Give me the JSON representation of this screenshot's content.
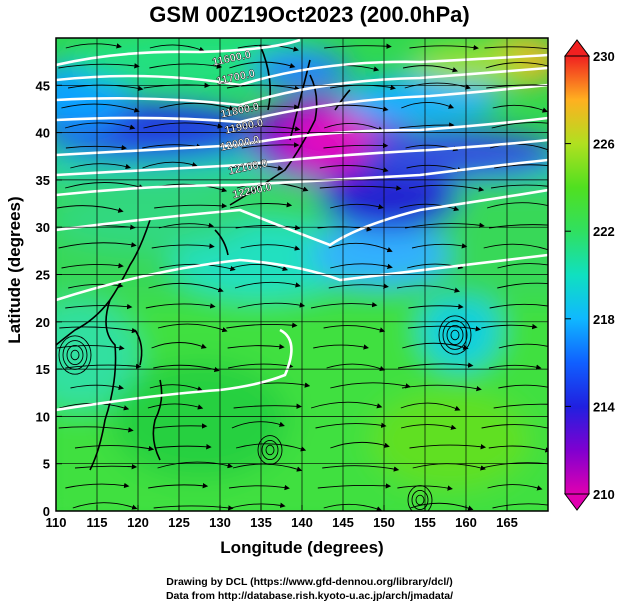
{
  "figure": {
    "title": "GSM 00Z19Oct2023 (200.0hPa)",
    "xlabel": "Longitude (degrees)",
    "ylabel": "Latitude  (degrees)",
    "credit_line1": "Drawing by DCL (https://www.gfd-dennou.org/library/dcl/)",
    "credit_line2": "Data from http://database.rish.kyoto-u.ac.jp/arch/jmadata/"
  },
  "chart_data": {
    "type": "heatmap",
    "xlim": [
      110,
      170
    ],
    "ylim": [
      0,
      50
    ],
    "x_ticks": [
      110,
      115,
      120,
      125,
      130,
      135,
      140,
      145,
      150,
      155,
      160,
      165
    ],
    "y_ticks": [
      0,
      5,
      10,
      15,
      20,
      25,
      30,
      35,
      40,
      45
    ],
    "grid": true,
    "colorbar": {
      "min": 210,
      "max": 230,
      "tick_labels": [
        210,
        214,
        218,
        222,
        226,
        230
      ],
      "placement": "right"
    },
    "contours": [
      {
        "label": "11600.0",
        "lon": 131.5,
        "lat": 47.5
      },
      {
        "label": "11700.0",
        "lon": 132.0,
        "lat": 45.5
      },
      {
        "label": "11800.0",
        "lon": 132.5,
        "lat": 42.0
      },
      {
        "label": "11900.0",
        "lon": 133.0,
        "lat": 40.3
      },
      {
        "label": "12000.0",
        "lon": 132.5,
        "lat": 38.5
      },
      {
        "label": "12100.0",
        "lon": 133.5,
        "lat": 36.0
      },
      {
        "label": "12200.0",
        "lon": 134.0,
        "lat": 33.5
      }
    ]
  }
}
